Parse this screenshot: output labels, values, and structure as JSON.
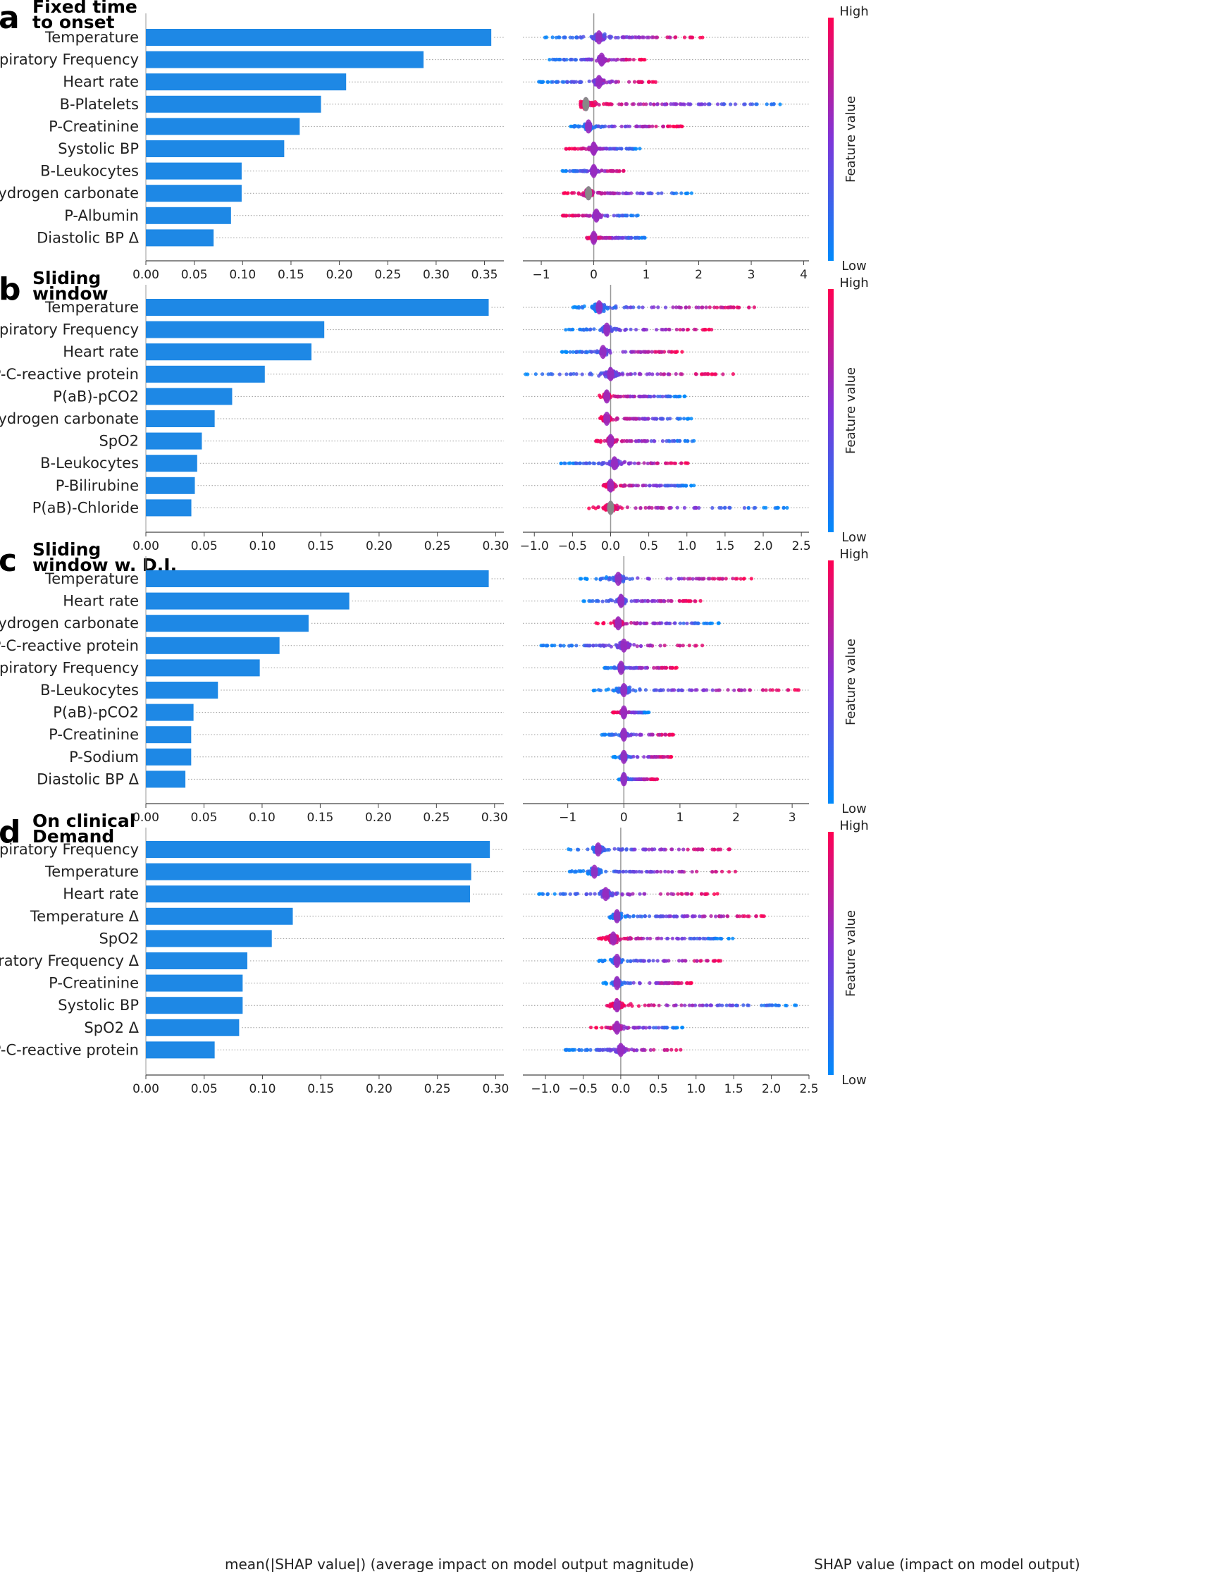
{
  "colors": {
    "bar": "#1e88e5",
    "low": "#008afb",
    "high": "#ff0052",
    "missing": "#888888"
  },
  "colorbar": {
    "high": "High",
    "low": "Low",
    "label": "Feature value"
  },
  "xlabels": {
    "bar": "mean(|SHAP value|) (average impact on model output magnitude)",
    "beeswarm": "SHAP value (impact on model output)"
  },
  "chart_data": [
    {
      "type": "bar",
      "panel": "a",
      "title": "Fixed time to onset",
      "title_lines": [
        "Fixed time",
        "to onset"
      ],
      "categories": [
        "Temperature",
        "Respiratory Frequency",
        "Heart rate",
        "B-Platelets",
        "P-Creatinine",
        "Systolic BP",
        "B-Leukocytes",
        "P(aB)-Hydrogen carbonate",
        "P-Albumin",
        "Diastolic BP Δ"
      ],
      "values": [
        0.357,
        0.287,
        0.207,
        0.181,
        0.159,
        0.143,
        0.099,
        0.099,
        0.088,
        0.07
      ],
      "xlim": [
        0,
        0.37
      ],
      "xticks": [
        "0.00",
        "0.05",
        "0.10",
        "0.15",
        "0.20",
        "0.25",
        "0.30",
        "0.35"
      ],
      "swarm": {
        "type": "scatter",
        "xlabel": "SHAP value (impact on model output)",
        "xlim": [
          -1.35,
          4.1
        ],
        "xticks": [
          "−1",
          "0",
          "1",
          "2",
          "3",
          "4"
        ],
        "xtick_values": [
          -1,
          0,
          1,
          2,
          3,
          4
        ],
        "features": [
          {
            "min": -0.95,
            "max": 2.1,
            "dense": 0.1,
            "low_side": "left"
          },
          {
            "min": -0.85,
            "max": 1.0,
            "dense": 0.15,
            "low_side": "left"
          },
          {
            "min": -1.05,
            "max": 1.2,
            "dense": 0.1,
            "low_side": "left"
          },
          {
            "min": -0.25,
            "max": 3.8,
            "dense": -0.15,
            "low_side": "right",
            "missing_center": -0.15
          },
          {
            "min": -0.45,
            "max": 1.7,
            "dense": -0.1,
            "low_side": "left"
          },
          {
            "min": -0.55,
            "max": 0.9,
            "dense": 0.0,
            "low_side": "right"
          },
          {
            "min": -0.6,
            "max": 0.6,
            "dense": 0.0,
            "low_side": "left"
          },
          {
            "min": -0.6,
            "max": 1.95,
            "dense": -0.1,
            "low_side": "right",
            "missing_center": -0.1
          },
          {
            "min": -0.6,
            "max": 0.85,
            "dense": 0.05,
            "low_side": "right"
          },
          {
            "min": -0.15,
            "max": 1.0,
            "dense": 0.0,
            "low_side": "right"
          }
        ]
      }
    },
    {
      "type": "bar",
      "panel": "b",
      "title": "Sliding window",
      "title_lines": [
        "Sliding",
        "window"
      ],
      "categories": [
        "Temperature",
        "Respiratory Frequency",
        "Heart rate",
        "P-C-reactive protein",
        "P(aB)-pCO2",
        "P(aB)-Hydrogen carbonate",
        "SpO2",
        "B-Leukocytes",
        "P-Bilirubine",
        "P(aB)-Chloride"
      ],
      "values": [
        0.294,
        0.153,
        0.142,
        0.102,
        0.074,
        0.059,
        0.048,
        0.044,
        0.042,
        0.039
      ],
      "xlim": [
        0,
        0.307
      ],
      "xticks": [
        "0.00",
        "0.05",
        "0.10",
        "0.15",
        "0.20",
        "0.25",
        "0.30"
      ],
      "swarm": {
        "type": "scatter",
        "xlabel": "SHAP value (impact on model output)",
        "xlim": [
          -1.15,
          2.6
        ],
        "xticks": [
          "−1.0",
          "−0.5",
          "0.0",
          "0.5",
          "1.0",
          "1.5",
          "2.0",
          "2.5"
        ],
        "xtick_values": [
          -1.0,
          -0.5,
          0.0,
          0.5,
          1.0,
          1.5,
          2.0,
          2.5
        ],
        "features": [
          {
            "min": -0.5,
            "max": 1.9,
            "dense": -0.15,
            "low_side": "left"
          },
          {
            "min": -0.6,
            "max": 1.35,
            "dense": -0.05,
            "low_side": "left"
          },
          {
            "min": -0.65,
            "max": 0.95,
            "dense": -0.1,
            "low_side": "left"
          },
          {
            "min": -1.15,
            "max": 1.65,
            "dense": 0.0,
            "low_side": "left"
          },
          {
            "min": -0.15,
            "max": 1.0,
            "dense": -0.05,
            "low_side": "right"
          },
          {
            "min": -0.15,
            "max": 1.1,
            "dense": -0.05,
            "low_side": "right"
          },
          {
            "min": -0.2,
            "max": 1.1,
            "dense": 0.0,
            "low_side": "right"
          },
          {
            "min": -0.7,
            "max": 1.05,
            "dense": 0.05,
            "low_side": "left"
          },
          {
            "min": -0.1,
            "max": 1.1,
            "dense": 0.0,
            "low_side": "right"
          },
          {
            "min": -0.3,
            "max": 2.35,
            "dense": 0.0,
            "low_side": "right",
            "missing_center": 0.0
          }
        ]
      }
    },
    {
      "type": "bar",
      "panel": "c",
      "title": "Sliding window w. D.I.",
      "title_lines": [
        "Sliding",
        "window w. D.I."
      ],
      "categories": [
        "Temperature",
        "Heart rate",
        "P(aB)-Hydrogen carbonate",
        "P-C-reactive protein",
        "Respiratory Frequency",
        "B-Leukocytes",
        "P(aB)-pCO2",
        "P-Creatinine",
        "P-Sodium",
        "Diastolic BP Δ"
      ],
      "values": [
        0.295,
        0.175,
        0.14,
        0.115,
        0.098,
        0.062,
        0.041,
        0.039,
        0.039,
        0.034
      ],
      "xlim": [
        0,
        0.308
      ],
      "xticks": [
        "0.00",
        "0.05",
        "0.10",
        "0.15",
        "0.20",
        "0.25",
        "0.30"
      ],
      "swarm": {
        "type": "scatter",
        "xlabel": "SHAP value (impact on model output)",
        "xlim": [
          -1.8,
          3.3
        ],
        "xticks": [
          "−1",
          "0",
          "1",
          "2",
          "3"
        ],
        "xtick_values": [
          -1,
          0,
          1,
          2,
          3
        ],
        "features": [
          {
            "min": -0.8,
            "max": 2.3,
            "dense": -0.1,
            "low_side": "left"
          },
          {
            "min": -0.75,
            "max": 1.4,
            "dense": -0.05,
            "low_side": "left"
          },
          {
            "min": -0.5,
            "max": 1.75,
            "dense": -0.1,
            "low_side": "right"
          },
          {
            "min": -1.5,
            "max": 1.5,
            "dense": 0.0,
            "low_side": "left"
          },
          {
            "min": -0.35,
            "max": 0.95,
            "dense": -0.05,
            "low_side": "left"
          },
          {
            "min": -0.65,
            "max": 3.2,
            "dense": 0.0,
            "low_side": "left"
          },
          {
            "min": -0.2,
            "max": 0.45,
            "dense": 0.0,
            "low_side": "right"
          },
          {
            "min": -0.4,
            "max": 0.9,
            "dense": 0.0,
            "low_side": "left"
          },
          {
            "min": -0.2,
            "max": 0.9,
            "dense": 0.0,
            "low_side": "left"
          },
          {
            "min": -0.1,
            "max": 0.6,
            "dense": 0.0,
            "low_side": "left"
          }
        ]
      }
    },
    {
      "type": "bar",
      "panel": "d",
      "title": "On clinical Demand",
      "title_lines": [
        "On clinical",
        "Demand"
      ],
      "categories": [
        "Respiratory Frequency",
        "Temperature",
        "Heart rate",
        "Temperature Δ",
        "SpO2",
        "Respiratory Frequency Δ",
        "P-Creatinine",
        "Systolic BP",
        "SpO2 Δ",
        "P-C-reactive protein"
      ],
      "values": [
        0.295,
        0.279,
        0.278,
        0.126,
        0.108,
        0.087,
        0.083,
        0.083,
        0.08,
        0.059
      ],
      "xlim": [
        0,
        0.307
      ],
      "xticks": [
        "0.00",
        "0.05",
        "0.10",
        "0.15",
        "0.20",
        "0.25",
        "0.30"
      ],
      "swarm": {
        "type": "scatter",
        "xlabel": "SHAP value (impact on model output)",
        "xlim": [
          -1.3,
          2.5
        ],
        "xticks": [
          "−1.0",
          "−0.5",
          "0.0",
          "0.5",
          "1.0",
          "1.5",
          "2.0",
          "2.5"
        ],
        "xtick_values": [
          -1.0,
          -0.5,
          0.0,
          0.5,
          1.0,
          1.5,
          2.0,
          2.5
        ],
        "features": [
          {
            "min": -0.7,
            "max": 1.5,
            "dense": -0.3,
            "low_side": "left"
          },
          {
            "min": -0.7,
            "max": 1.6,
            "dense": -0.35,
            "low_side": "left"
          },
          {
            "min": -1.1,
            "max": 1.3,
            "dense": -0.2,
            "low_side": "left"
          },
          {
            "min": -0.2,
            "max": 1.95,
            "dense": -0.05,
            "low_side": "left"
          },
          {
            "min": -0.3,
            "max": 1.5,
            "dense": -0.1,
            "low_side": "right"
          },
          {
            "min": -0.3,
            "max": 1.35,
            "dense": -0.05,
            "low_side": "left"
          },
          {
            "min": -0.25,
            "max": 1.0,
            "dense": -0.05,
            "low_side": "left"
          },
          {
            "min": -0.2,
            "max": 2.35,
            "dense": -0.05,
            "low_side": "right"
          },
          {
            "min": -0.4,
            "max": 0.85,
            "dense": -0.05,
            "low_side": "right"
          },
          {
            "min": -0.75,
            "max": 0.85,
            "dense": 0.0,
            "low_side": "left"
          }
        ]
      }
    }
  ]
}
